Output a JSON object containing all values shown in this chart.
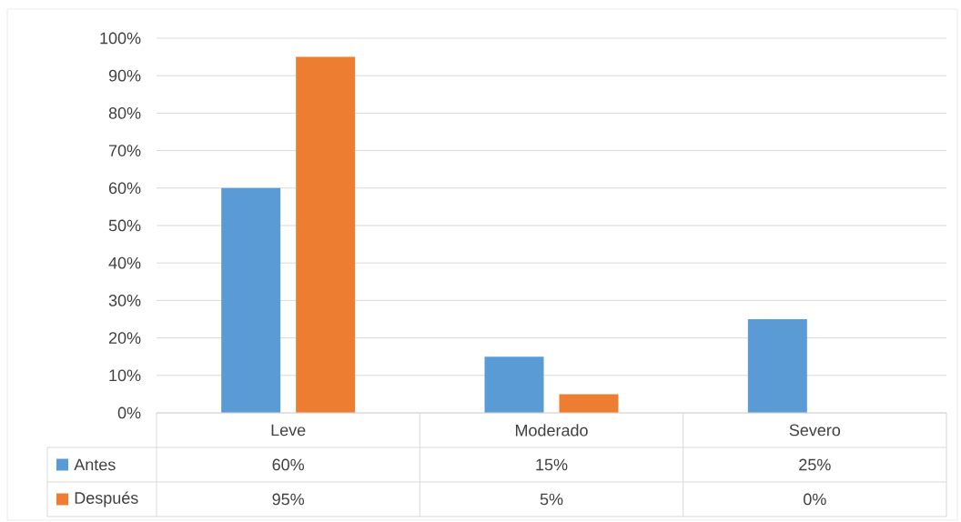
{
  "chart_data": {
    "type": "bar",
    "categories": [
      "Leve",
      "Moderado",
      "Severo"
    ],
    "series": [
      {
        "name": "Antes",
        "color": "#5b9bd5",
        "values": [
          60,
          15,
          25
        ],
        "value_labels": [
          "60%",
          "15%",
          "25%"
        ]
      },
      {
        "name": "Después",
        "color": "#ed7d31",
        "values": [
          95,
          5,
          0
        ],
        "value_labels": [
          "95%",
          "5%",
          "0%"
        ]
      }
    ],
    "ylim": [
      0,
      100
    ],
    "yticks": [
      {
        "value": 0,
        "label": "0%"
      },
      {
        "value": 10,
        "label": "10%"
      },
      {
        "value": 20,
        "label": "20%"
      },
      {
        "value": 30,
        "label": "30%"
      },
      {
        "value": 40,
        "label": "40%"
      },
      {
        "value": 50,
        "label": "50%"
      },
      {
        "value": 60,
        "label": "60%"
      },
      {
        "value": 70,
        "label": "70%"
      },
      {
        "value": 80,
        "label": "80%"
      },
      {
        "value": 90,
        "label": "90%"
      },
      {
        "value": 100,
        "label": "100%"
      }
    ],
    "grid": "y",
    "legend": "bottom"
  }
}
